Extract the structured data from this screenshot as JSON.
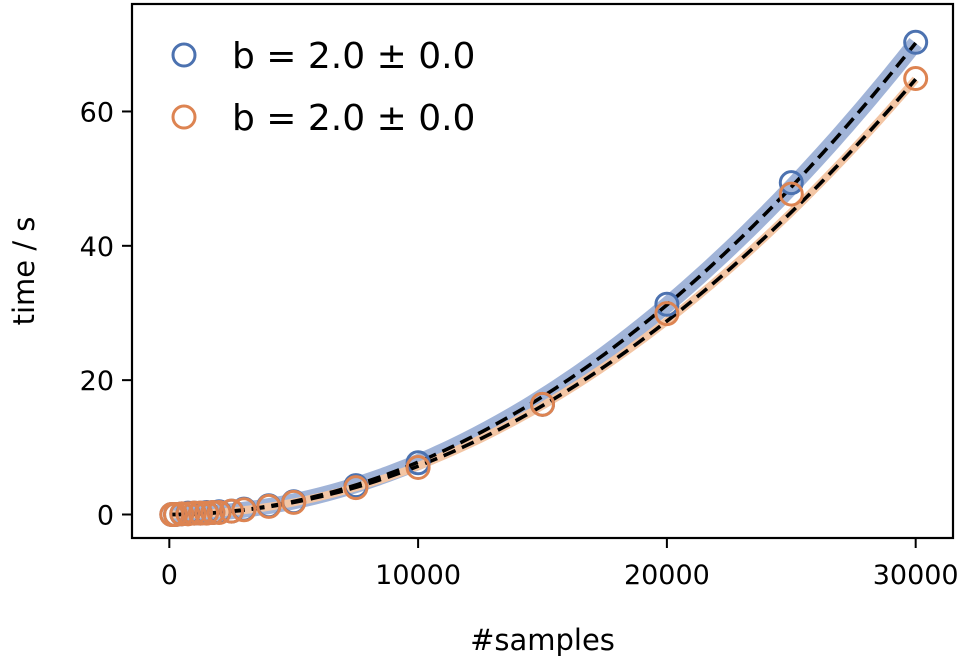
{
  "chart_data": {
    "type": "scatter",
    "xlabel": "#samples",
    "ylabel": "time / s",
    "xlim": [
      -1500,
      31500
    ],
    "ylim": [
      -3.5,
      76
    ],
    "xticks": [
      0,
      10000,
      20000,
      30000
    ],
    "yticks": [
      0,
      20,
      40,
      60
    ],
    "grid": false,
    "legend_position": "top-left",
    "series": [
      {
        "name": "b = 2.0 ± 0.0",
        "color": "#4c72b0",
        "band_color": "#a1b4d8",
        "marker": "open-circle",
        "x": [
          100,
          250,
          500,
          750,
          1000,
          1250,
          1500,
          1750,
          2000,
          2500,
          3000,
          4000,
          5000,
          7500,
          10000,
          15000,
          20000,
          25000,
          30000
        ],
        "y": [
          0.0,
          0.0,
          0.1,
          0.2,
          0.2,
          0.2,
          0.3,
          0.3,
          0.4,
          0.5,
          0.8,
          1.3,
          1.9,
          4.3,
          7.7,
          16.4,
          31.3,
          49.4,
          70.3
        ],
        "fit": {
          "a": 7.8e-08,
          "exponent": 2.0
        }
      },
      {
        "name": "b = 2.0 ± 0.0",
        "color": "#dd8452",
        "band_color": "#f3c6a5",
        "marker": "open-circle",
        "x": [
          100,
          250,
          500,
          750,
          1000,
          1250,
          1500,
          1750,
          2000,
          2500,
          3000,
          4000,
          5000,
          7500,
          10000,
          15000,
          20000,
          25000,
          30000
        ],
        "y": [
          0.0,
          0.0,
          0.1,
          0.1,
          0.2,
          0.2,
          0.2,
          0.3,
          0.3,
          0.5,
          0.7,
          1.2,
          1.8,
          4.0,
          7.0,
          16.4,
          29.9,
          47.7,
          64.9
        ],
        "fit": {
          "a": 7.2e-08,
          "exponent": 2.0
        }
      }
    ]
  }
}
